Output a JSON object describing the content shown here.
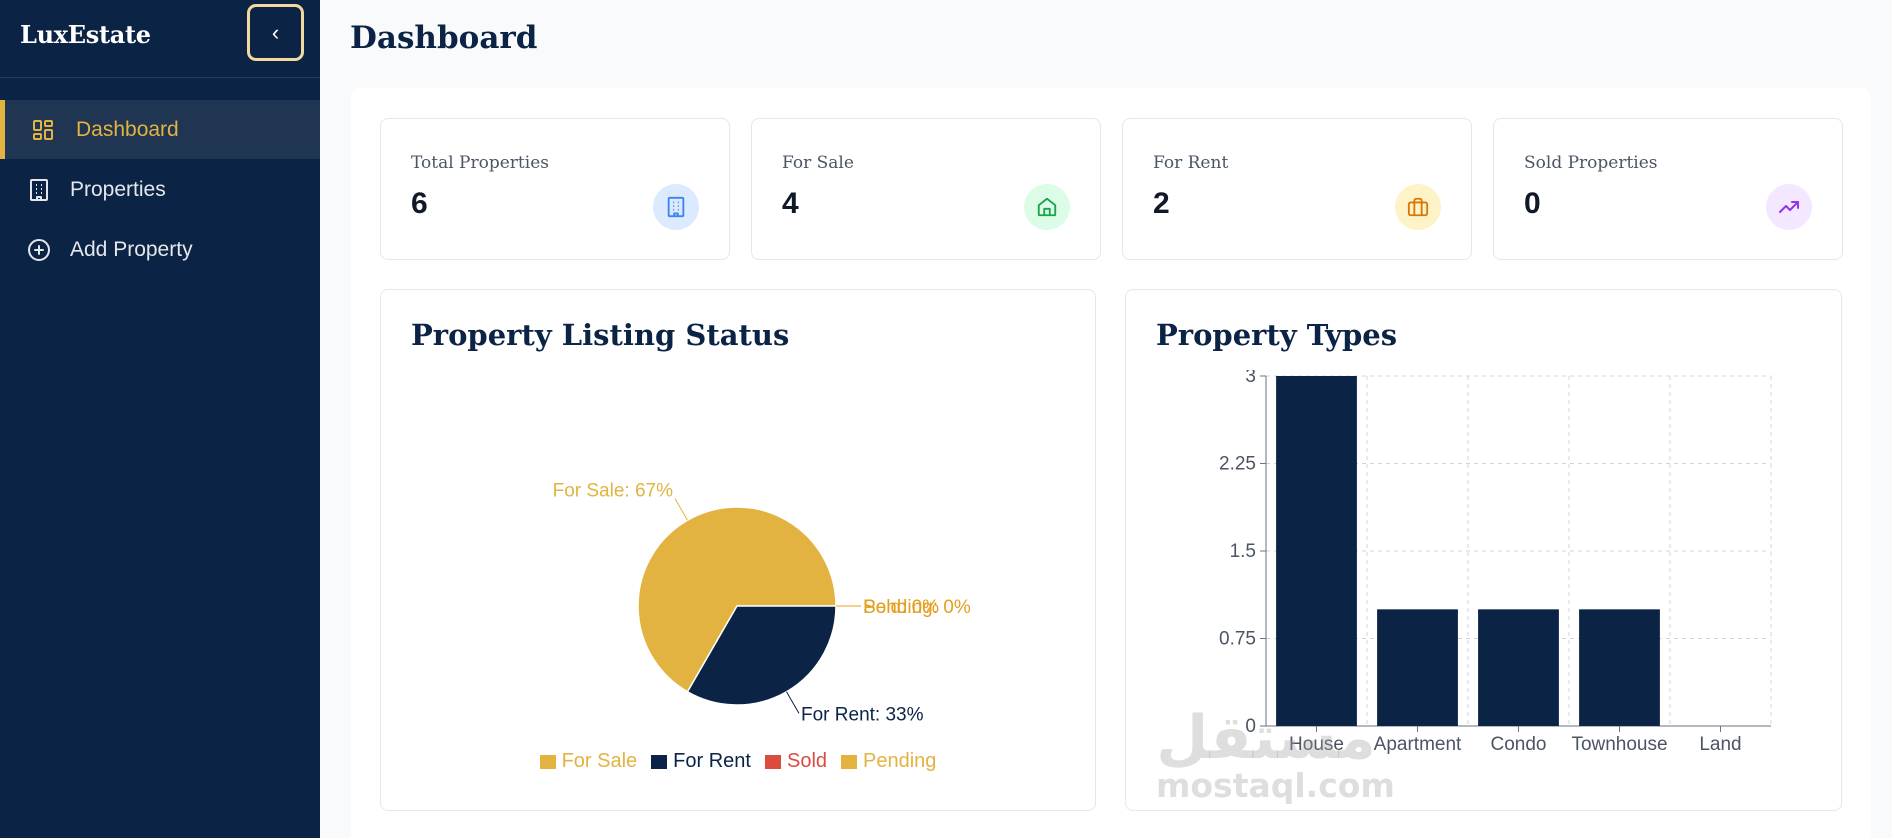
{
  "app": {
    "brand": "LuxEstate",
    "collapse_glyph": "‹"
  },
  "sidebar": {
    "items": [
      {
        "label": "Dashboard",
        "icon": "layout-grid-icon",
        "active": true
      },
      {
        "label": "Properties",
        "icon": "building-icon",
        "active": false
      },
      {
        "label": "Add Property",
        "icon": "plus-circle-icon",
        "active": false
      }
    ]
  },
  "page": {
    "title": "Dashboard"
  },
  "stats": [
    {
      "label": "Total Properties",
      "value": "6",
      "icon": "building-icon",
      "bg": "#dbeafe",
      "fg": "#3b82f6"
    },
    {
      "label": "For Sale",
      "value": "4",
      "icon": "home-icon",
      "bg": "#dcfce7",
      "fg": "#16a34a"
    },
    {
      "label": "For Rent",
      "value": "2",
      "icon": "briefcase-icon",
      "bg": "#fef3c7",
      "fg": "#d97706"
    },
    {
      "label": "Sold Properties",
      "value": "0",
      "icon": "trending-up-icon",
      "bg": "#f3e8ff",
      "fg": "#9333ea"
    }
  ],
  "watermark": {
    "arabic": "مستقل",
    "latin": "mostaql.com"
  },
  "chart_data": [
    {
      "type": "pie",
      "title": "Property Listing Status",
      "categories": [
        "For Sale",
        "For Rent",
        "Sold",
        "Pending"
      ],
      "values": [
        4,
        2,
        0,
        0
      ],
      "slice_labels": [
        "For Sale: 67%",
        "For Rent: 33%",
        "Sold: 0%",
        "Pending: 0%"
      ],
      "colors": [
        "#e3b341",
        "#0b2345",
        "#dc4b3e",
        "#e3b341"
      ],
      "legend": "bottom"
    },
    {
      "type": "bar",
      "title": "Property Types",
      "categories": [
        "House",
        "Apartment",
        "Condo",
        "Townhouse",
        "Land"
      ],
      "values": [
        3,
        1,
        1,
        1,
        0
      ],
      "yticks": [
        "0",
        "0.75",
        "1.5",
        "2.25",
        "3"
      ],
      "ylim": [
        0,
        3
      ],
      "grid": true,
      "color": "#0b2345"
    }
  ]
}
